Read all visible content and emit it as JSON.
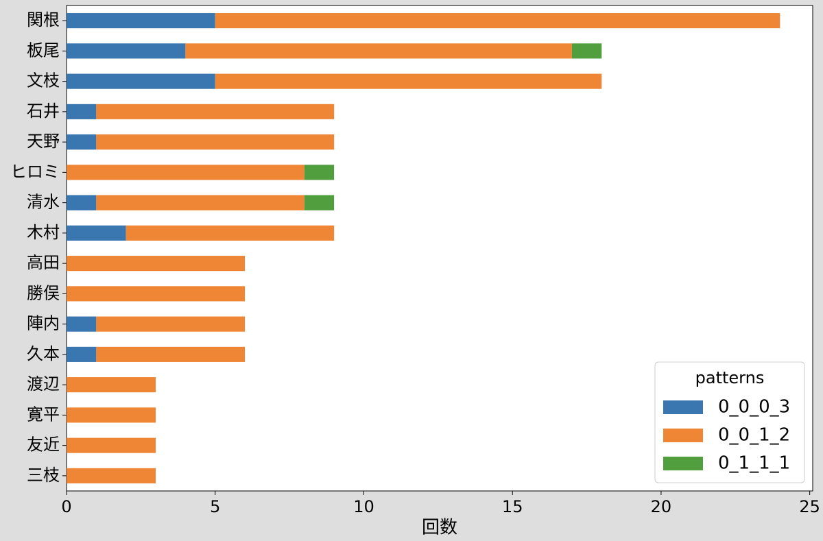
{
  "chart_data": {
    "type": "stacked-barh",
    "xlabel": "回数",
    "categories": [
      "関根",
      "板尾",
      "文枝",
      "石井",
      "天野",
      "ヒロミ",
      "清水",
      "木村",
      "高田",
      "勝俣",
      "陣内",
      "久本",
      "渡辺",
      "寛平",
      "友近",
      "三枝"
    ],
    "series": [
      {
        "name": "0_0_0_3",
        "color": "#3a76af",
        "values": [
          5,
          4,
          5,
          1,
          1,
          0,
          1,
          2,
          0,
          0,
          1,
          1,
          0,
          0,
          0,
          0
        ]
      },
      {
        "name": "0_0_1_2",
        "color": "#ef8636",
        "values": [
          19,
          13,
          13,
          8,
          8,
          8,
          7,
          7,
          6,
          6,
          5,
          5,
          3,
          3,
          3,
          3
        ]
      },
      {
        "name": "0_1_1_1",
        "color": "#519e3e",
        "values": [
          0,
          1,
          0,
          0,
          0,
          1,
          1,
          0,
          0,
          0,
          0,
          0,
          0,
          0,
          0,
          0
        ]
      }
    ],
    "legend_title": "patterns",
    "legend": "lower right",
    "xlim": [
      0,
      25.1
    ],
    "xticks": [
      0,
      5,
      10,
      15,
      20,
      25
    ]
  }
}
